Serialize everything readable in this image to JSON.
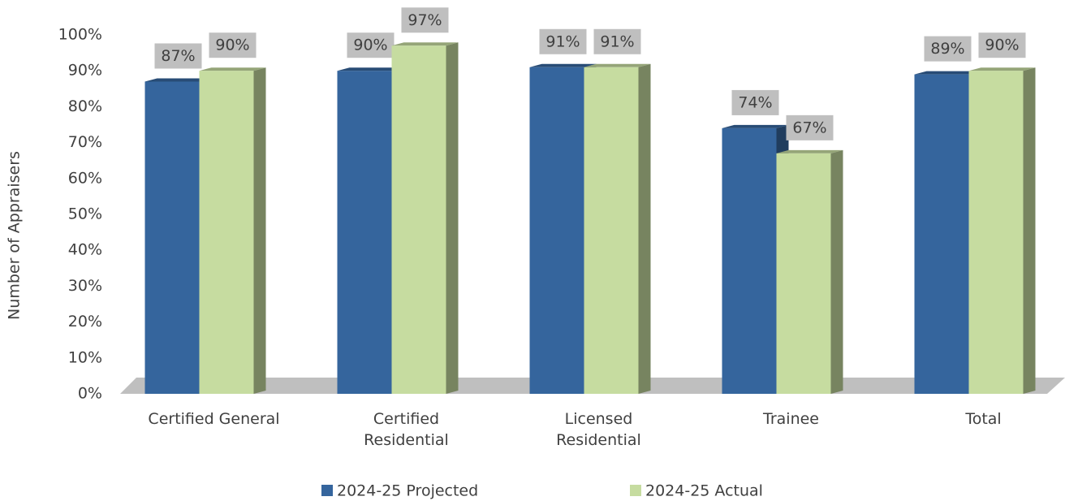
{
  "chart_data": {
    "type": "bar3d",
    "y_label": "Number of Appraisers",
    "categories": [
      "Certified General",
      "Certified\nResidential",
      "Licensed\nResidential",
      "Trainee",
      "Total"
    ],
    "series": [
      {
        "name": "2024-25 Projected",
        "color": "#35659d",
        "values": [
          87,
          90,
          91,
          74,
          89
        ],
        "value_labels": [
          "87%",
          "90%",
          "91%",
          "74%",
          "89%"
        ]
      },
      {
        "name": "2024-25 Actual",
        "color": "#c6dca0",
        "values": [
          90,
          97,
          91,
          67,
          90
        ],
        "value_labels": [
          "90%",
          "97%",
          "91%",
          "67%",
          "90%"
        ]
      }
    ],
    "ylim": [
      0,
      100
    ],
    "yticks": [
      {
        "value": 0,
        "label": "0%"
      },
      {
        "value": 10,
        "label": "10%"
      },
      {
        "value": 20,
        "label": "20%"
      },
      {
        "value": 30,
        "label": "30%"
      },
      {
        "value": 40,
        "label": "40%"
      },
      {
        "value": 50,
        "label": "50%"
      },
      {
        "value": 60,
        "label": "60%"
      },
      {
        "value": 70,
        "label": "70%"
      },
      {
        "value": 80,
        "label": "80%"
      },
      {
        "value": 90,
        "label": "90%"
      },
      {
        "value": 100,
        "label": "100%"
      }
    ],
    "legend": "bottom"
  }
}
